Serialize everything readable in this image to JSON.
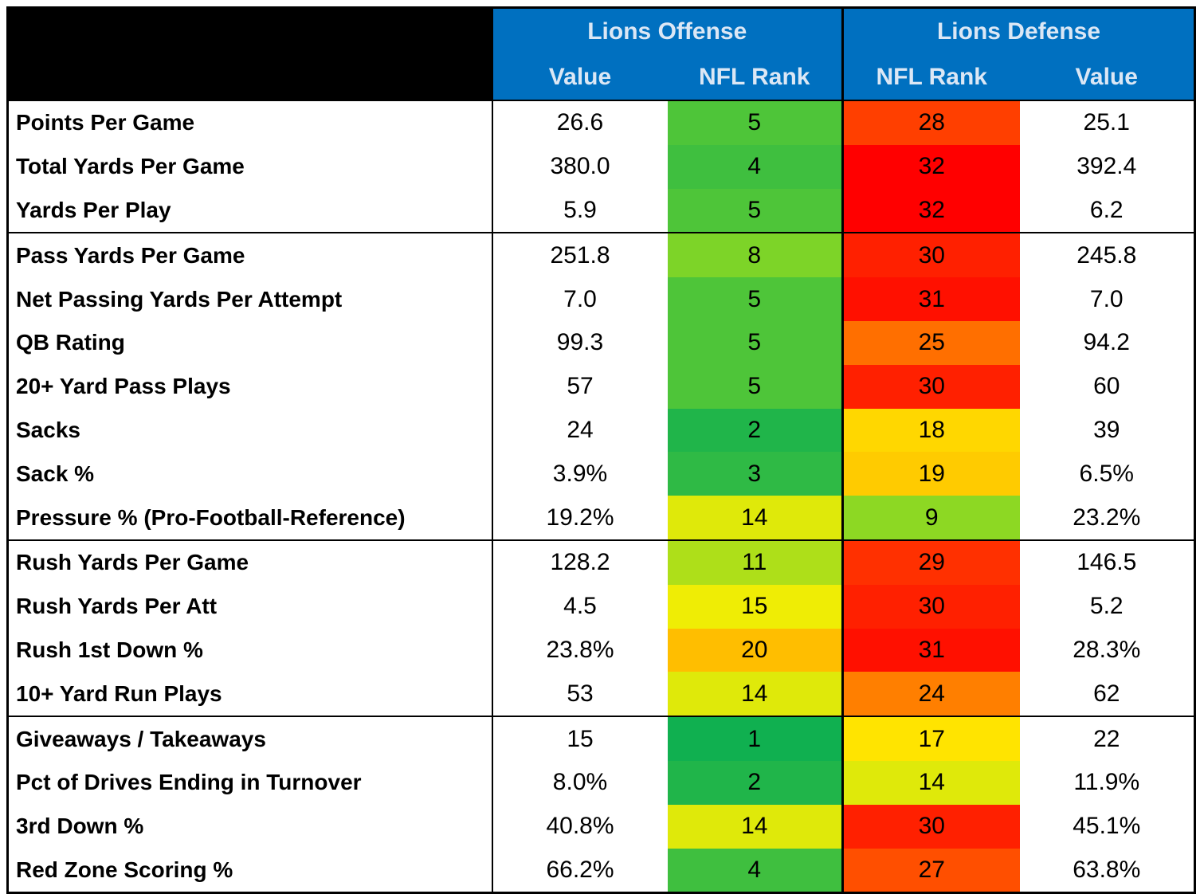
{
  "header": {
    "groups": [
      "Lions Offense",
      "Lions Defense"
    ],
    "columns": [
      "Value",
      "NFL Rank",
      "NFL Rank",
      "Value"
    ]
  },
  "sections": [
    {
      "rows": [
        {
          "label": "Points Per Game",
          "cells": [
            "26.6",
            5,
            28,
            "25.1"
          ]
        },
        {
          "label": "Total Yards Per Game",
          "cells": [
            "380.0",
            4,
            32,
            "392.4"
          ]
        },
        {
          "label": "Yards Per Play",
          "cells": [
            "5.9",
            5,
            32,
            "6.2"
          ]
        }
      ]
    },
    {
      "rows": [
        {
          "label": "Pass Yards Per Game",
          "cells": [
            "251.8",
            8,
            30,
            "245.8"
          ]
        },
        {
          "label": "Net Passing Yards Per Attempt",
          "cells": [
            "7.0",
            5,
            31,
            "7.0"
          ]
        },
        {
          "label": "QB Rating",
          "cells": [
            "99.3",
            5,
            25,
            "94.2"
          ]
        },
        {
          "label": "20+ Yard Pass Plays",
          "cells": [
            57,
            5,
            30,
            60
          ]
        },
        {
          "label": "Sacks",
          "cells": [
            24,
            2,
            18,
            39
          ]
        },
        {
          "label": "Sack %",
          "cells": [
            "3.9%",
            3,
            19,
            "6.5%"
          ]
        },
        {
          "label": "Pressure % (Pro-Football-Reference)",
          "cells": [
            "19.2%",
            14,
            9,
            "23.2%"
          ]
        }
      ]
    },
    {
      "rows": [
        {
          "label": "Rush Yards Per Game",
          "cells": [
            "128.2",
            11,
            29,
            "146.5"
          ]
        },
        {
          "label": "Rush Yards Per Att",
          "cells": [
            "4.5",
            15,
            30,
            "5.2"
          ]
        },
        {
          "label": "Rush 1st Down %",
          "cells": [
            "23.8%",
            20,
            31,
            "28.3%"
          ]
        },
        {
          "label": "10+ Yard Run Plays",
          "cells": [
            53,
            14,
            24,
            62
          ]
        }
      ]
    },
    {
      "rows": [
        {
          "label": "Giveaways / Takeaways",
          "cells": [
            15,
            1,
            17,
            22
          ]
        },
        {
          "label": "Pct of Drives Ending in Turnover",
          "cells": [
            "8.0%",
            2,
            14,
            "11.9%"
          ]
        },
        {
          "label": "3rd Down %",
          "cells": [
            "40.8%",
            14,
            30,
            "45.1%"
          ]
        },
        {
          "label": "Red Zone Scoring %",
          "cells": [
            "66.2%",
            4,
            27,
            "63.8%"
          ]
        }
      ]
    }
  ]
}
